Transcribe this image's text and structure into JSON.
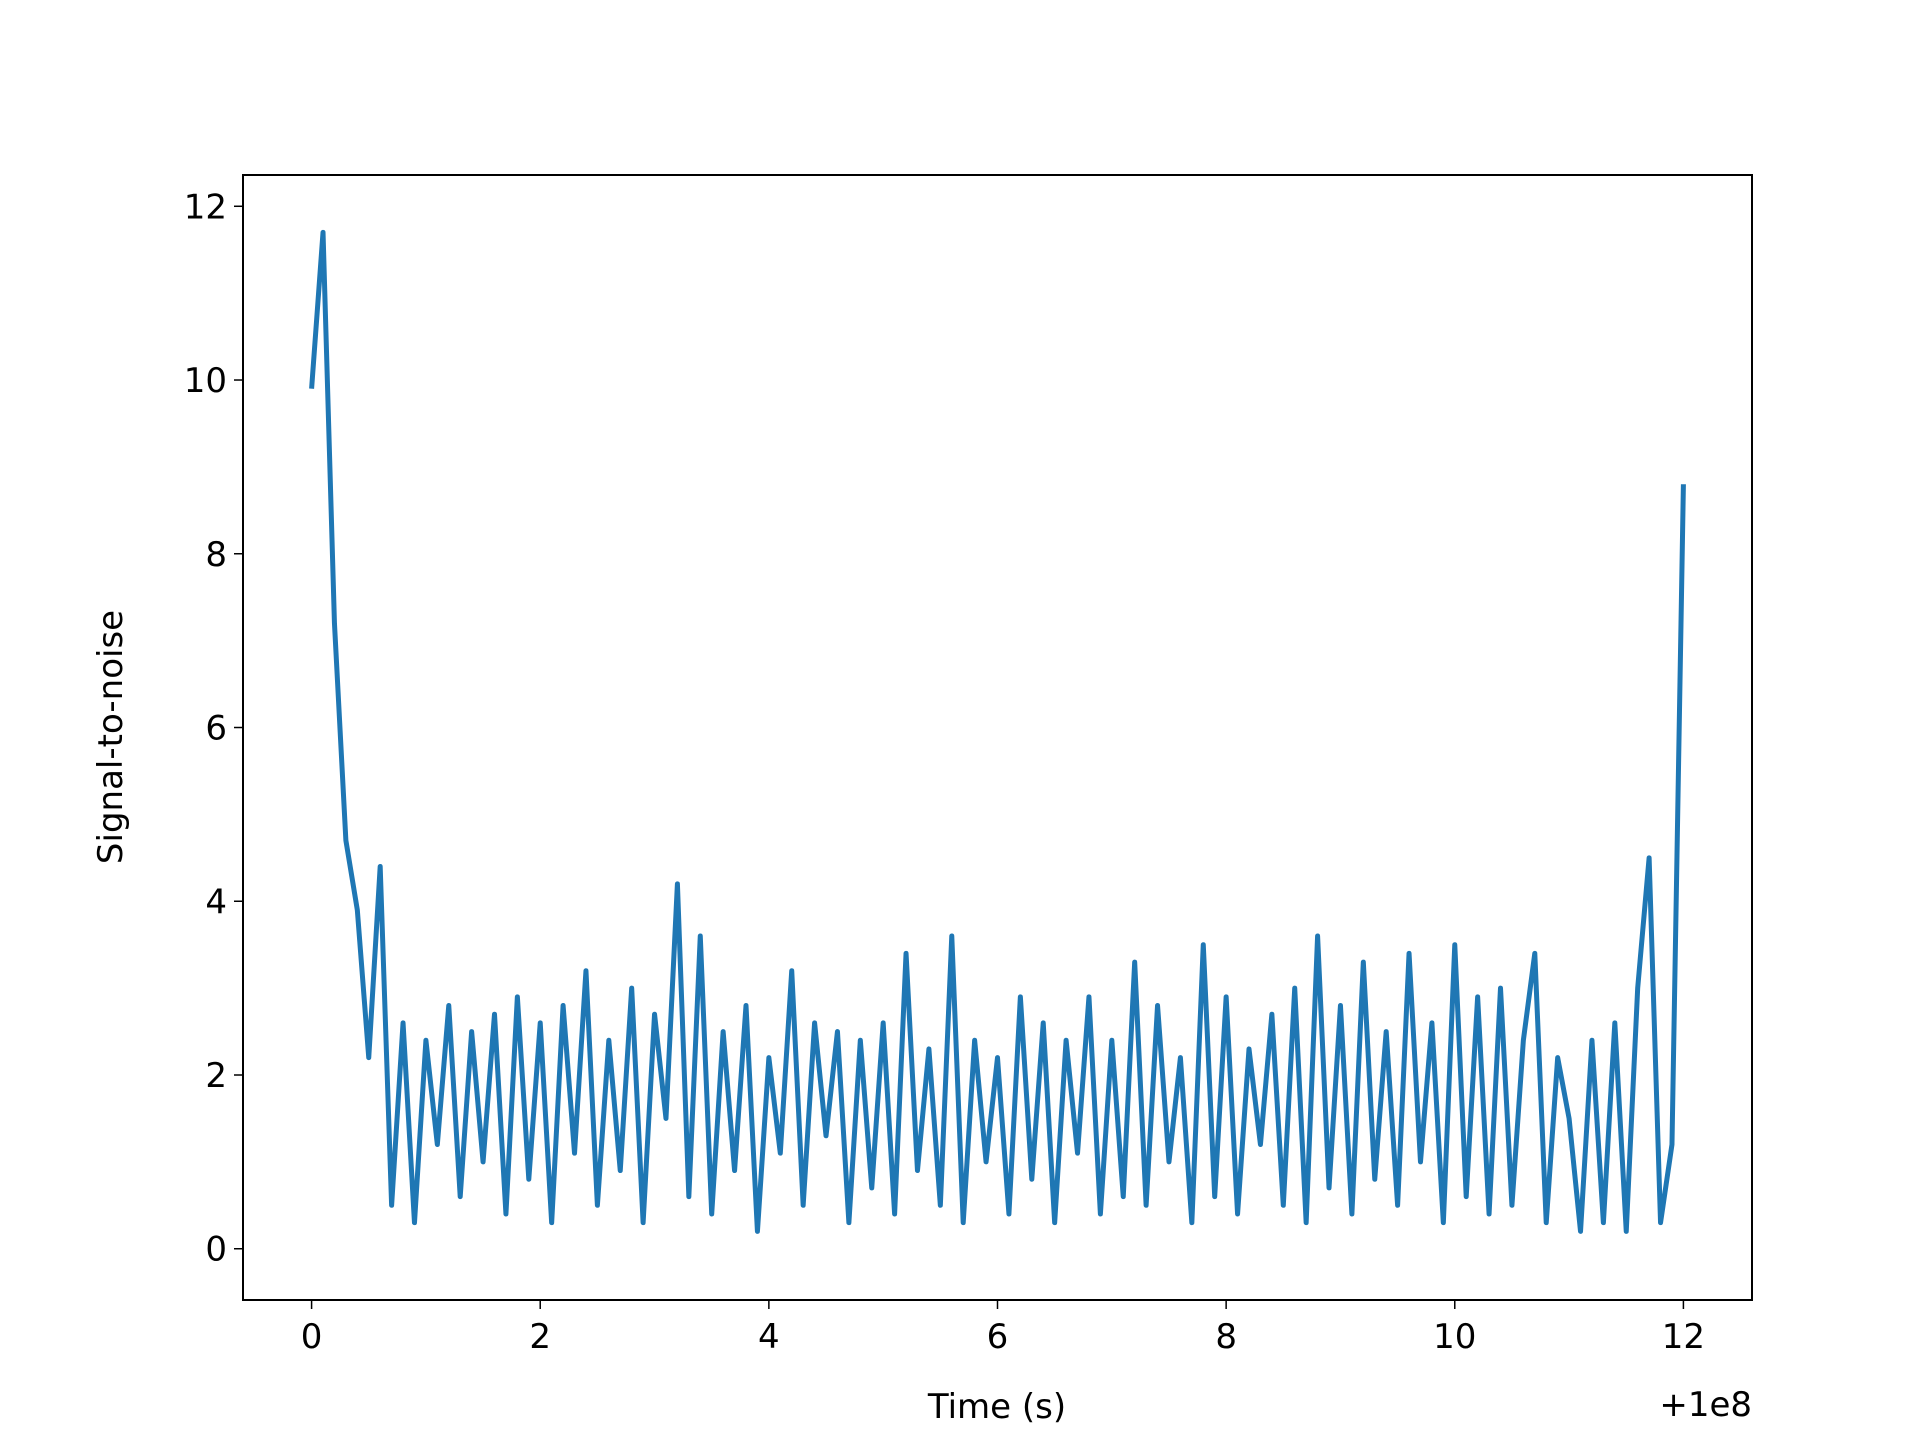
{
  "chart_data": {
    "type": "line",
    "xlabel": "Time (s)",
    "ylabel": "Signal-to-noise",
    "x_offset_label": "+1e8",
    "x": [
      0,
      0.1,
      0.2,
      0.3,
      0.4,
      0.5,
      0.6,
      0.7,
      0.8,
      0.9,
      1,
      1.1,
      1.2,
      1.3,
      1.4,
      1.5,
      1.6,
      1.7,
      1.8,
      1.9,
      2,
      2.1,
      2.2,
      2.3,
      2.4,
      2.5,
      2.6,
      2.7,
      2.8,
      2.9,
      3,
      3.1,
      3.2,
      3.3,
      3.4,
      3.5,
      3.6,
      3.7,
      3.8,
      3.9,
      4,
      4.1,
      4.2,
      4.3,
      4.4,
      4.5,
      4.6,
      4.7,
      4.8,
      4.9,
      5,
      5.1,
      5.2,
      5.3,
      5.4,
      5.5,
      5.6,
      5.7,
      5.8,
      5.9,
      6,
      6.1,
      6.2,
      6.3,
      6.4,
      6.5,
      6.6,
      6.7,
      6.8,
      6.9,
      7,
      7.1,
      7.2,
      7.3,
      7.4,
      7.5,
      7.6,
      7.7,
      7.8,
      7.9,
      8,
      8.1,
      8.2,
      8.3,
      8.4,
      8.5,
      8.6,
      8.7,
      8.8,
      8.9,
      9,
      9.1,
      9.2,
      9.3,
      9.4,
      9.5,
      9.6,
      9.7,
      9.8,
      9.9,
      10,
      10.1,
      10.2,
      10.3,
      10.4,
      10.5,
      10.6,
      10.7,
      10.8,
      10.9,
      11,
      11.1,
      11.2,
      11.3,
      11.4,
      11.5,
      11.6,
      11.7,
      11.8,
      11.9,
      12
    ],
    "series": [
      {
        "name": "Signal-to-noise",
        "color": "#1f77b4",
        "values": [
          9.9,
          11.7,
          7.2,
          4.7,
          3.9,
          2.2,
          4.4,
          0.5,
          2.6,
          0.3,
          2.4,
          1.2,
          2.8,
          0.6,
          2.5,
          1.0,
          2.7,
          0.4,
          2.9,
          0.8,
          2.6,
          0.3,
          2.8,
          1.1,
          3.2,
          0.5,
          2.4,
          0.9,
          3.0,
          0.3,
          2.7,
          1.5,
          4.2,
          0.6,
          3.6,
          0.4,
          2.5,
          0.9,
          2.8,
          0.2,
          2.2,
          1.1,
          3.2,
          0.5,
          2.6,
          1.3,
          2.5,
          0.3,
          2.4,
          0.7,
          2.6,
          0.4,
          3.4,
          0.9,
          2.3,
          0.5,
          3.6,
          0.3,
          2.4,
          1.0,
          2.2,
          0.4,
          2.9,
          0.8,
          2.6,
          0.3,
          2.4,
          1.1,
          2.9,
          0.4,
          2.4,
          0.6,
          3.3,
          0.5,
          2.8,
          1.0,
          2.2,
          0.3,
          3.5,
          0.6,
          2.9,
          0.4,
          2.3,
          1.2,
          2.7,
          0.5,
          3.0,
          0.3,
          3.6,
          0.7,
          2.8,
          0.4,
          3.3,
          0.8,
          2.5,
          0.5,
          3.4,
          1.0,
          2.6,
          0.3,
          3.5,
          0.6,
          2.9,
          0.4,
          3.0,
          0.5,
          2.4,
          3.4,
          0.3,
          2.2,
          1.5,
          0.2,
          2.4,
          0.3,
          2.6,
          0.2,
          3.0,
          4.5,
          0.3,
          1.2,
          8.8
        ]
      }
    ],
    "xlim": [
      -0.6,
      12.6
    ],
    "xticks": [
      0,
      2,
      4,
      6,
      8,
      10,
      12
    ],
    "ylim": [
      -0.59,
      12.36
    ],
    "yticks": [
      0,
      2,
      4,
      6,
      8,
      10,
      12
    ],
    "grid": false
  }
}
